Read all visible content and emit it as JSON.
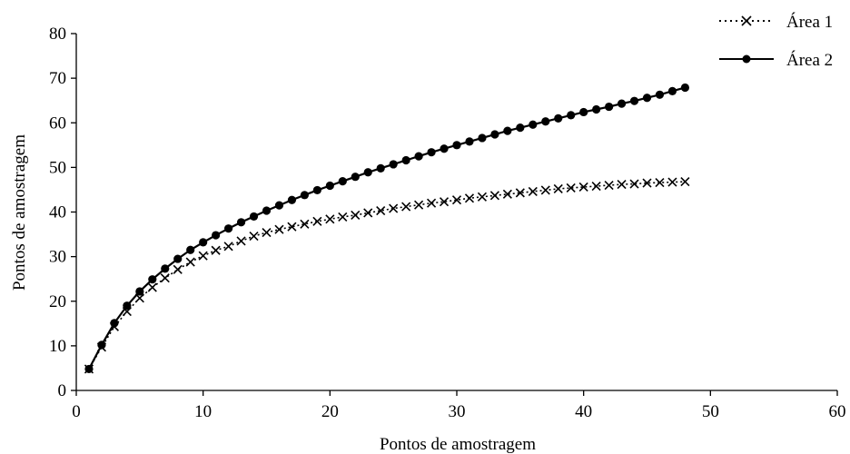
{
  "chart_data": {
    "type": "line",
    "title": "",
    "xlabel": "Pontos de amostragem",
    "ylabel": "Pontos de amostragem",
    "xlim": [
      0,
      60
    ],
    "ylim": [
      0,
      80
    ],
    "xticks": [
      0,
      10,
      20,
      30,
      40,
      50,
      60
    ],
    "yticks": [
      0,
      10,
      20,
      30,
      40,
      50,
      60,
      70,
      80
    ],
    "grid": false,
    "legend_position": "top-right",
    "x": [
      1,
      2,
      3,
      4,
      5,
      6,
      7,
      8,
      9,
      10,
      11,
      12,
      13,
      14,
      15,
      16,
      17,
      18,
      19,
      20,
      21,
      22,
      23,
      24,
      25,
      26,
      27,
      28,
      29,
      30,
      31,
      32,
      33,
      34,
      35,
      36,
      37,
      38,
      39,
      40,
      41,
      42,
      43,
      44,
      45,
      46,
      47,
      48
    ],
    "series": [
      {
        "name": "Área 1",
        "line_style": "dotted",
        "marker": "x",
        "color": "#000000",
        "values": [
          4.8,
          9.7,
          14.3,
          17.7,
          20.7,
          23.1,
          25.2,
          27.1,
          28.8,
          30.2,
          31.4,
          32.3,
          33.5,
          34.6,
          35.4,
          36.1,
          36.7,
          37.3,
          37.9,
          38.4,
          38.9,
          39.3,
          39.8,
          40.3,
          40.8,
          41.2,
          41.6,
          42.0,
          42.3,
          42.7,
          43.1,
          43.4,
          43.7,
          44.0,
          44.3,
          44.6,
          44.9,
          45.2,
          45.4,
          45.6,
          45.8,
          46.0,
          46.2,
          46.3,
          46.5,
          46.6,
          46.7,
          46.8
        ]
      },
      {
        "name": "Área 2",
        "line_style": "solid",
        "marker": "circle",
        "color": "#000000",
        "values": [
          4.8,
          10.2,
          15.1,
          19.0,
          22.2,
          24.9,
          27.3,
          29.5,
          31.5,
          33.2,
          34.8,
          36.3,
          37.7,
          39.0,
          40.3,
          41.5,
          42.7,
          43.8,
          44.9,
          45.9,
          46.9,
          47.9,
          48.9,
          49.8,
          50.7,
          51.6,
          52.5,
          53.4,
          54.2,
          55.0,
          55.8,
          56.6,
          57.4,
          58.2,
          58.9,
          59.6,
          60.3,
          61.0,
          61.7,
          62.4,
          63.0,
          63.6,
          64.3,
          64.9,
          65.6,
          66.3,
          67.1,
          67.9
        ]
      }
    ]
  }
}
